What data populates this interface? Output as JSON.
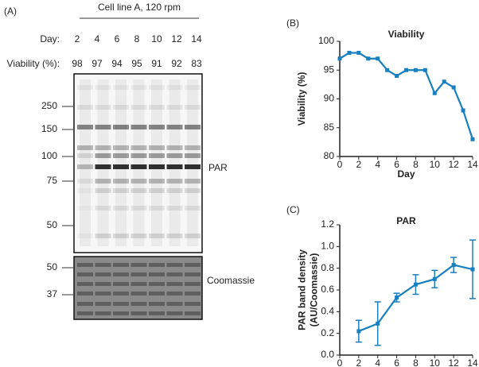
{
  "panel_a": {
    "label": "(A)",
    "cell_line": "Cell line A, 120 rpm",
    "day_label": "Day:",
    "days": [
      2,
      4,
      6,
      8,
      10,
      12,
      14
    ],
    "viability_label": "Viability (%):",
    "viability": [
      98,
      97,
      94,
      95,
      91,
      92,
      83
    ],
    "markers_par": [
      250,
      150,
      100,
      75,
      50
    ],
    "markers_coomassie": [
      50,
      37
    ],
    "par_label": "PAR",
    "coomassie_label": "Coomassie"
  },
  "chart_data": [
    {
      "type": "line",
      "panel_label": "(B)",
      "title": "Viability",
      "x_label": "Day",
      "y_label": [
        "Viability (%)"
      ],
      "x": [
        0,
        1,
        2,
        3,
        4,
        5,
        6,
        7,
        8,
        9,
        10,
        11,
        12,
        13,
        14
      ],
      "values": [
        97,
        98,
        98,
        97,
        97,
        95,
        94,
        95,
        95,
        95,
        91,
        93,
        92,
        88,
        83
      ],
      "color": "#1a7fbf",
      "xlim": [
        0,
        14
      ],
      "xticks": [
        0,
        2,
        4,
        6,
        8,
        10,
        12,
        14
      ],
      "ylim": [
        80,
        100
      ],
      "yticks": [
        80,
        85,
        90,
        95,
        100
      ]
    },
    {
      "type": "line",
      "panel_label": "(C)",
      "title": "PAR",
      "x_label": "Day",
      "y_label": [
        "PAR band density",
        "(AU/Coomassie)"
      ],
      "x": [
        2,
        4,
        6,
        8,
        10,
        12,
        14
      ],
      "values": [
        0.22,
        0.29,
        0.53,
        0.65,
        0.7,
        0.83,
        0.79
      ],
      "errors": [
        0.1,
        0.2,
        0.04,
        0.09,
        0.08,
        0.07,
        0.27
      ],
      "color": "#1a7fbf",
      "xlim": [
        0,
        14
      ],
      "xticks": [
        0,
        2,
        4,
        6,
        8,
        10,
        12,
        14
      ],
      "ylim": [
        0,
        1.2
      ],
      "yticks": [
        {
          "value": 0,
          "label": "0.0"
        },
        0.2,
        0.4,
        0.6,
        0.8,
        {
          "value": 1,
          "label": "1.0"
        },
        1.2
      ]
    }
  ]
}
